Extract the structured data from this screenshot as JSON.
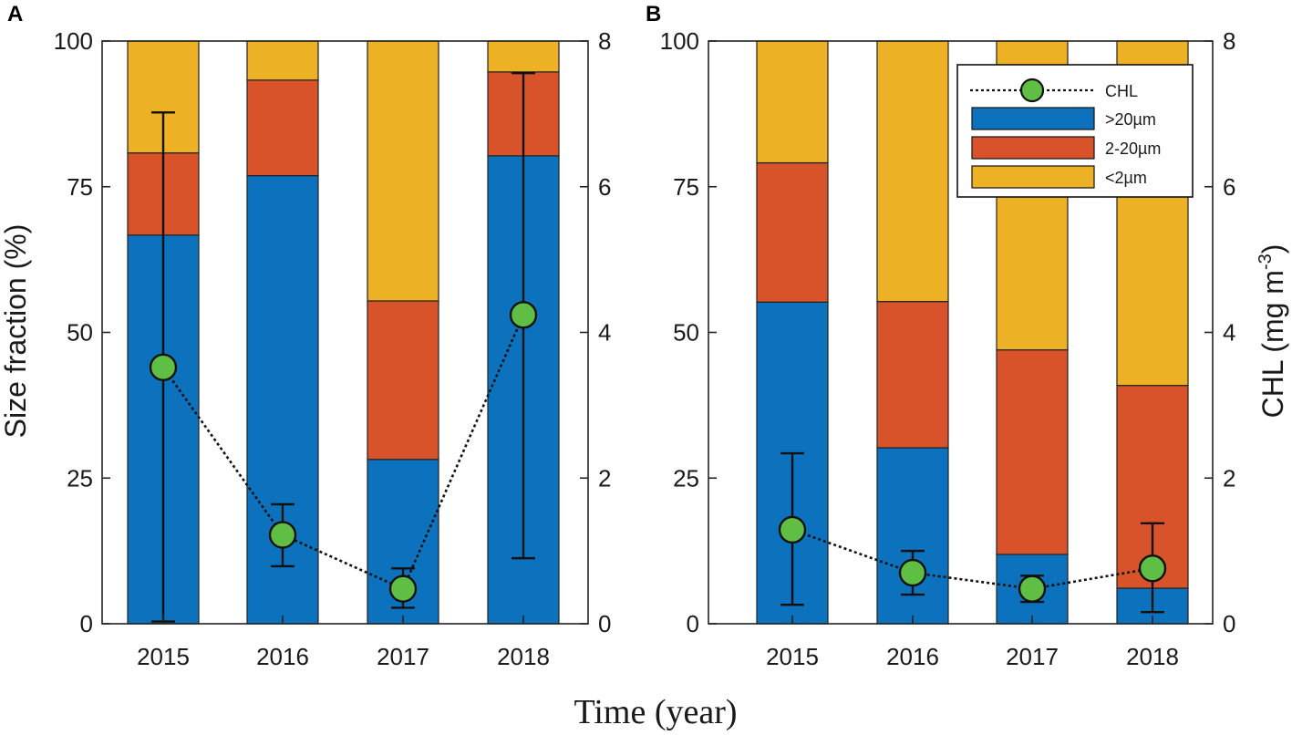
{
  "figure": {
    "xlabel": "Time (year)",
    "ylabel_left": "Size fraction (%)",
    "ylabel_right_main": "CHL (mg m",
    "ylabel_right_sup": "-3",
    "ylabel_right_close": ")",
    "colors": {
      "gt20": "#0c72bd",
      "mid": "#d9532a",
      "lt2": "#ecb125",
      "chl_marker": "#5fbf45",
      "axis": "#222222"
    },
    "legend": {
      "panel": "B",
      "position": "top-right",
      "entries": [
        {
          "key": "chl",
          "label": "CHL"
        },
        {
          "key": "gt20",
          "label": ">20µm"
        },
        {
          "key": "mid",
          "label": "2-20µm"
        },
        {
          "key": "lt2",
          "label": "<2µm"
        }
      ]
    }
  },
  "chart_data": [
    {
      "panel": "A",
      "type": "bar",
      "stacked": true,
      "categories": [
        "2015",
        "2016",
        "2017",
        "2018"
      ],
      "ylim_left": [
        0,
        100
      ],
      "yticks_left": [
        0,
        25,
        50,
        75,
        100
      ],
      "ylim_right": [
        0,
        8
      ],
      "yticks_right": [
        0,
        2,
        4,
        6,
        8
      ],
      "series": [
        {
          "name": ">20µm",
          "key": "gt20",
          "values": [
            66.7,
            76.9,
            28.2,
            80.3
          ]
        },
        {
          "name": "2-20µm",
          "key": "mid",
          "values": [
            14.1,
            16.4,
            27.2,
            14.4
          ]
        },
        {
          "name": "<2µm",
          "key": "lt2",
          "values": [
            19.2,
            6.7,
            44.6,
            5.3
          ]
        }
      ],
      "chl": {
        "mean": [
          3.52,
          1.22,
          0.48,
          4.24
        ],
        "lower": [
          0.03,
          0.79,
          0.22,
          0.9
        ],
        "upper": [
          7.02,
          1.64,
          0.76,
          7.56
        ]
      }
    },
    {
      "panel": "B",
      "type": "bar",
      "stacked": true,
      "categories": [
        "2015",
        "2016",
        "2017",
        "2018"
      ],
      "ylim_left": [
        0,
        100
      ],
      "yticks_left": [
        0,
        25,
        50,
        75,
        100
      ],
      "ylim_right": [
        0,
        8
      ],
      "yticks_right": [
        0,
        2,
        4,
        6,
        8
      ],
      "series": [
        {
          "name": ">20µm",
          "key": "gt20",
          "values": [
            55.2,
            30.2,
            11.9,
            6.1
          ]
        },
        {
          "name": "2-20µm",
          "key": "mid",
          "values": [
            23.9,
            25.1,
            35.1,
            34.8
          ]
        },
        {
          "name": "<2µm",
          "key": "lt2",
          "values": [
            20.9,
            44.7,
            53.0,
            59.1
          ]
        }
      ],
      "chl": {
        "mean": [
          1.29,
          0.7,
          0.48,
          0.76
        ],
        "lower": [
          0.26,
          0.4,
          0.3,
          0.16
        ],
        "upper": [
          2.34,
          1.0,
          0.66,
          1.38
        ]
      }
    }
  ]
}
